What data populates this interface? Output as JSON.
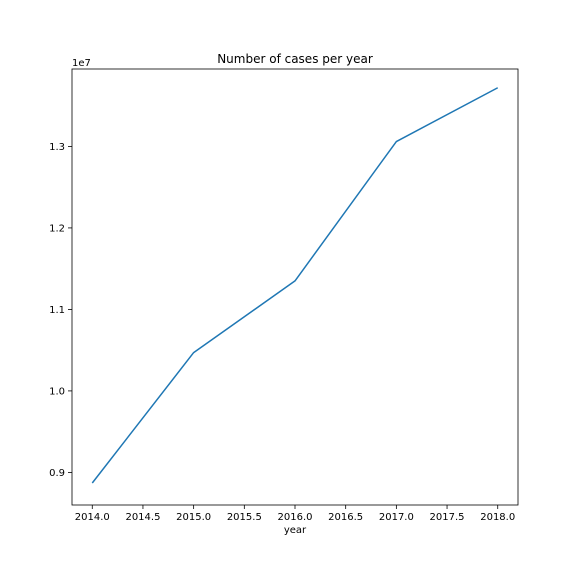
{
  "chart_data": {
    "type": "line",
    "title": "Number of cases per year",
    "xlabel": "year",
    "ylabel": "",
    "y_offset_label": "1e7",
    "x": [
      2014.0,
      2015.0,
      2016.0,
      2017.0,
      2018.0
    ],
    "series": [
      {
        "values": [
          8870000,
          10470000,
          11350000,
          13060000,
          13720000
        ],
        "color": "#1f77b4"
      }
    ],
    "xlim": [
      2013.8,
      2018.2
    ],
    "ylim": [
      8600000,
      13950000
    ],
    "x_ticks": [
      2014.0,
      2014.5,
      2015.0,
      2015.5,
      2016.0,
      2016.5,
      2017.0,
      2017.5,
      2018.0
    ],
    "x_tick_labels": [
      "2014.0",
      "2014.5",
      "2015.0",
      "2015.5",
      "2016.0",
      "2016.5",
      "2017.0",
      "2017.5",
      "2018.0"
    ],
    "y_ticks": [
      9000000,
      10000000,
      11000000,
      12000000,
      13000000
    ],
    "y_tick_labels": [
      "0.9",
      "1.0",
      "1.1",
      "1.2",
      "1.3"
    ],
    "grid": false,
    "legend": "none"
  }
}
